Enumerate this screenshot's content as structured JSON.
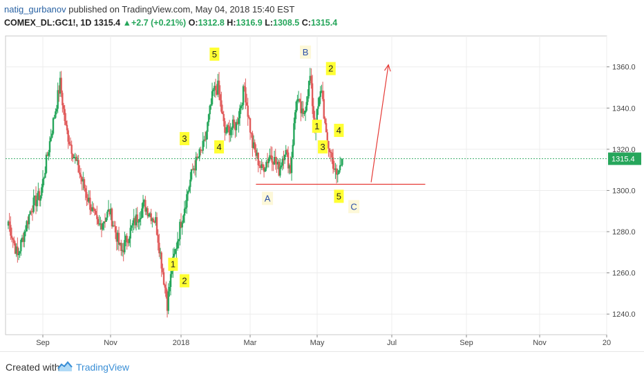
{
  "header": {
    "author": "natig_gurbanov",
    "published_text": "published on TradingView.com, May 04, 2018 15:40 EST",
    "symbol": "COMEX_DL:GC1!, 1D",
    "last": "1315.4",
    "change": "+2.7 (+0.21%)",
    "o_label": "O:",
    "o_value": "1312.8",
    "h_label": "H:",
    "h_value": "1316.9",
    "l_label": "L:",
    "l_value": "1308.5",
    "c_label": "C:",
    "c_value": "1315.4"
  },
  "footer": {
    "created_with": "Created with",
    "brand": "TradingView"
  },
  "colors": {
    "up": "#26a65b",
    "down": "#e05a5a",
    "annotation": "#e53935",
    "label_bg": "#ffff33",
    "price_badge": "#26a65b"
  },
  "chart_data": {
    "type": "candlestick",
    "ylim": [
      1230,
      1375
    ],
    "yticks": [
      "1240.0",
      "1260.0",
      "1280.0",
      "1300.0",
      "1320.0",
      "1340.0",
      "1360.0"
    ],
    "ytick_values": [
      1240,
      1260,
      1280,
      1300,
      1320,
      1340,
      1360
    ],
    "xticks": [
      "Sep",
      "Nov",
      "2018",
      "Mar",
      "May",
      "Jul",
      "Sep",
      "Nov",
      "20"
    ],
    "last_price_label": "1315.4",
    "last_price": 1315.4,
    "anchors": [
      {
        "i": 0,
        "p": 1285
      },
      {
        "i": 8,
        "p": 1268
      },
      {
        "i": 20,
        "p": 1292
      },
      {
        "i": 28,
        "p": 1298
      },
      {
        "i": 38,
        "p": 1330
      },
      {
        "i": 45,
        "p": 1352
      },
      {
        "i": 50,
        "p": 1330
      },
      {
        "i": 58,
        "p": 1315
      },
      {
        "i": 68,
        "p": 1298
      },
      {
        "i": 78,
        "p": 1282
      },
      {
        "i": 88,
        "p": 1290
      },
      {
        "i": 98,
        "p": 1270
      },
      {
        "i": 108,
        "p": 1283
      },
      {
        "i": 118,
        "p": 1293
      },
      {
        "i": 128,
        "p": 1285
      },
      {
        "i": 138,
        "p": 1245
      },
      {
        "i": 142,
        "p": 1262
      },
      {
        "i": 150,
        "p": 1285
      },
      {
        "i": 160,
        "p": 1310
      },
      {
        "i": 170,
        "p": 1322
      },
      {
        "i": 178,
        "p": 1348
      },
      {
        "i": 182,
        "p": 1350
      },
      {
        "i": 188,
        "p": 1328
      },
      {
        "i": 192,
        "p": 1330
      },
      {
        "i": 198,
        "p": 1332
      },
      {
        "i": 205,
        "p": 1350
      },
      {
        "i": 212,
        "p": 1322
      },
      {
        "i": 220,
        "p": 1310
      },
      {
        "i": 228,
        "p": 1318
      },
      {
        "i": 235,
        "p": 1310
      },
      {
        "i": 240,
        "p": 1320
      },
      {
        "i": 245,
        "p": 1310
      },
      {
        "i": 250,
        "p": 1345
      },
      {
        "i": 256,
        "p": 1335
      },
      {
        "i": 262,
        "p": 1355
      },
      {
        "i": 266,
        "p": 1330
      },
      {
        "i": 272,
        "p": 1350
      },
      {
        "i": 276,
        "p": 1325
      },
      {
        "i": 280,
        "p": 1318
      },
      {
        "i": 285,
        "p": 1306
      },
      {
        "i": 290,
        "p": 1315
      }
    ],
    "annotations": {
      "wave_labels": [
        {
          "text": "5",
          "t": 179,
          "p": 1366
        },
        {
          "text": "3",
          "t": 153,
          "p": 1325
        },
        {
          "text": "4",
          "t": 183,
          "p": 1321
        },
        {
          "text": "1",
          "t": 143,
          "p": 1264
        },
        {
          "text": "2",
          "t": 153,
          "p": 1256
        },
        {
          "text": "1",
          "t": 268,
          "p": 1331
        },
        {
          "text": "2",
          "t": 280,
          "p": 1359
        },
        {
          "text": "3",
          "t": 273,
          "p": 1321
        },
        {
          "text": "4",
          "t": 287,
          "p": 1329
        },
        {
          "text": "5",
          "t": 287,
          "p": 1297
        }
      ],
      "letter_labels": [
        {
          "text": "A",
          "t": 225,
          "p": 1296
        },
        {
          "text": "B",
          "t": 258,
          "p": 1367
        },
        {
          "text": "C",
          "t": 300,
          "p": 1292
        }
      ],
      "support_line": {
        "t1": 215,
        "t2": 362,
        "p": 1303
      },
      "projection": {
        "t1": 315,
        "p1": 1304,
        "t2": 330,
        "p2": 1361
      }
    }
  }
}
